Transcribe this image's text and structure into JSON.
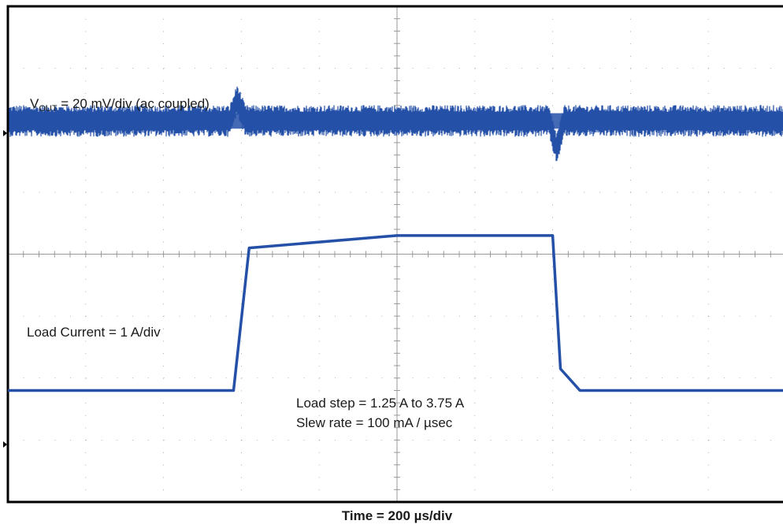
{
  "chart_data": {
    "type": "line",
    "title": "",
    "xlabel": "Time = 200 µs/div",
    "ylabel": "",
    "grid": true,
    "divisions": {
      "x": 10,
      "y": 8
    },
    "x_unit": "µs",
    "x_per_div": 200,
    "xlim": [
      0,
      2000
    ],
    "series": [
      {
        "name": "V",
        "name_sub": "OUT",
        "label_suffix": " = 20 mV/div (ac coupled)",
        "coupling": "ac",
        "volts_per_div": "20 mV/div",
        "level_div": 1.85,
        "ripple_div": 0.25,
        "transients": [
          {
            "t": 590,
            "dev_div": -0.35
          },
          {
            "t": 1410,
            "dev_div": 0.45
          }
        ],
        "color": "#2550a8"
      },
      {
        "name": "Load Current = 1 A/div",
        "amps_per_div": "1 A/div",
        "x": [
          0,
          580,
          620,
          1000,
          1400,
          1420,
          1470,
          1994
        ],
        "y": [
          1.25,
          1.25,
          3.55,
          3.75,
          3.75,
          1.6,
          1.25,
          1.25
        ],
        "color": "#2550a8"
      }
    ],
    "annotations": [
      "Load step = 1.25 A to 3.75 A",
      "Slew rate = 100 mA / µsec"
    ],
    "trace_color": "#2550a8",
    "grid_color": "#999999",
    "frame_color": "#000000"
  }
}
